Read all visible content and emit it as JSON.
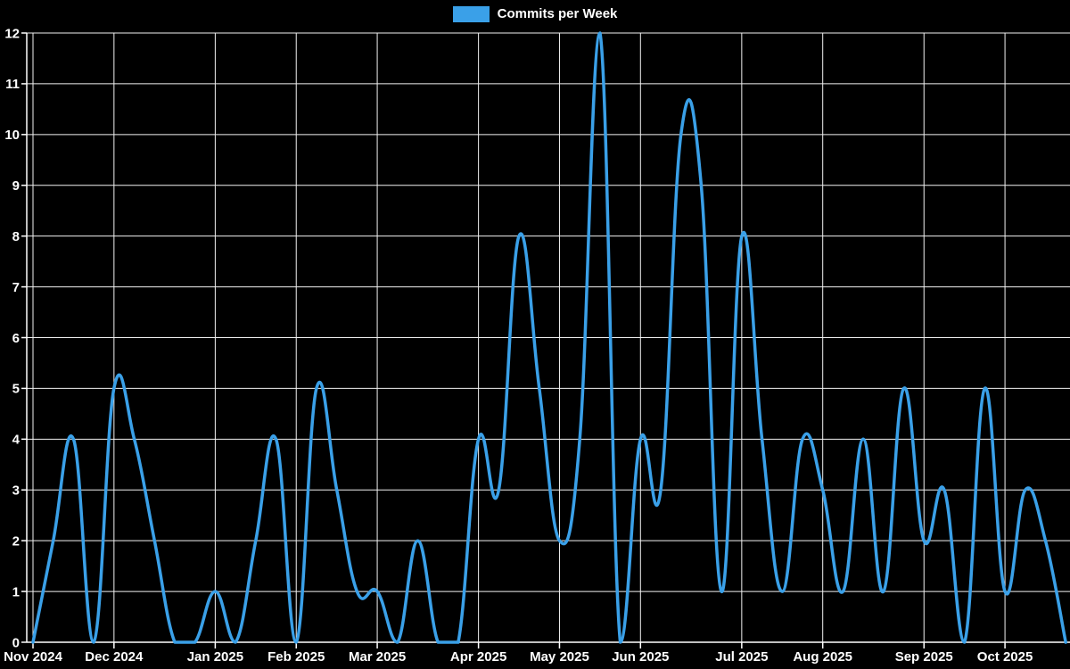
{
  "legend": {
    "label": "Commits per Week"
  },
  "chart_data": {
    "type": "line",
    "title": "",
    "legend_label": "Commits per Week",
    "legend_position": "top-center",
    "grid": true,
    "smoothing": "bezier",
    "x_unit": "week",
    "xlabel": "",
    "ylabel": "",
    "ylim": [
      0,
      12
    ],
    "y_ticks": [
      0,
      1,
      2,
      3,
      4,
      5,
      6,
      7,
      8,
      9,
      10,
      11,
      12
    ],
    "x_tick_labels": [
      "Nov 2024",
      "Dec 2024",
      "Jan 2025",
      "Feb 2025",
      "Mar 2025",
      "Apr 2025",
      "May 2025",
      "Jun 2025",
      "Jul 2025",
      "Aug 2025",
      "Sep 2025",
      "Oct 2025"
    ],
    "x_tick_week_indices": [
      0,
      4,
      9,
      13,
      17,
      22,
      26,
      30,
      35,
      39,
      44,
      48
    ],
    "series": [
      {
        "name": "Commits per Week",
        "values": [
          0,
          2,
          4,
          0,
          5,
          4,
          2,
          0,
          0,
          1,
          0,
          2,
          4,
          0,
          5,
          3,
          1,
          1,
          0,
          2,
          0,
          0,
          4,
          3,
          8,
          5,
          2,
          4,
          12,
          0,
          4,
          3,
          10,
          9,
          1,
          8,
          4,
          1,
          4,
          3,
          1,
          4,
          1,
          5,
          2,
          3,
          0,
          5,
          1,
          3,
          2,
          0
        ]
      }
    ],
    "colors": {
      "line": "#3AA0E8",
      "background": "#000000",
      "grid": "#F2F2F2",
      "axis": "#FFFFFF",
      "text": "#FFFFFF"
    }
  }
}
